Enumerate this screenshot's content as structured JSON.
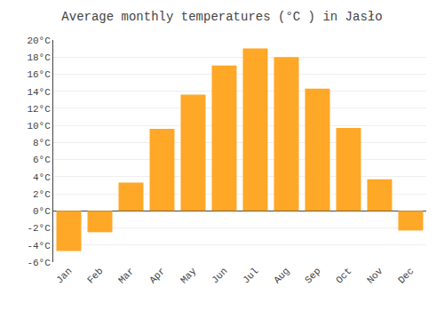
{
  "chart_data": {
    "type": "bar",
    "title": "Average monthly temperatures (°C ) in Jasło",
    "categories": [
      "Jan",
      "Feb",
      "Mar",
      "Apr",
      "May",
      "Jun",
      "Jul",
      "Aug",
      "Sep",
      "Oct",
      "Nov",
      "Dec"
    ],
    "values": [
      -4.7,
      -2.5,
      3.3,
      9.6,
      13.6,
      17.0,
      19.0,
      18.0,
      14.3,
      9.7,
      3.7,
      -2.3
    ],
    "color": "#FFA726",
    "ylim": [
      -6,
      20
    ],
    "yticks": [
      {
        "value": -6,
        "label": "-6°C"
      },
      {
        "value": -4,
        "label": "-4°C"
      },
      {
        "value": -2,
        "label": "-2°C"
      },
      {
        "value": 0,
        "label": "0°C"
      },
      {
        "value": 2,
        "label": "2°C"
      },
      {
        "value": 4,
        "label": "4°C"
      },
      {
        "value": 6,
        "label": "6°C"
      },
      {
        "value": 8,
        "label": "8°C"
      },
      {
        "value": 10,
        "label": "10°C"
      },
      {
        "value": 12,
        "label": "12°C"
      },
      {
        "value": 14,
        "label": "14°C"
      },
      {
        "value": 16,
        "label": "16°C"
      },
      {
        "value": 18,
        "label": "18°C"
      },
      {
        "value": 20,
        "label": "20°C"
      }
    ],
    "grid": true
  }
}
